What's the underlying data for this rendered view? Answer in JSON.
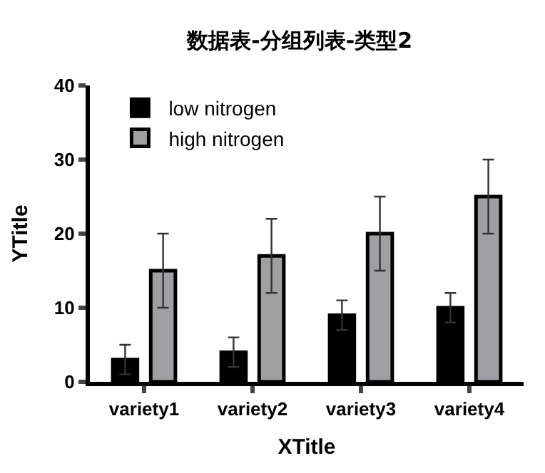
{
  "chart_data": {
    "type": "bar",
    "title": "数据表-分组列表-类型2",
    "xlabel": "XTitle",
    "ylabel": "YTitle",
    "categories": [
      "variety1",
      "variety2",
      "variety3",
      "variety4"
    ],
    "series": [
      {
        "name": "low nitrogen",
        "color": "#000000",
        "values": [
          3,
          4,
          9,
          10
        ],
        "errors": [
          2,
          2,
          2,
          2
        ]
      },
      {
        "name": "high nitrogen",
        "color": "#a0a0a4",
        "values": [
          15,
          17,
          20,
          25
        ],
        "errors": [
          5,
          5,
          5,
          5
        ]
      }
    ],
    "ylim": [
      0,
      40
    ],
    "yticks": [
      0,
      10,
      20,
      30,
      40
    ],
    "legend": "top left"
  }
}
